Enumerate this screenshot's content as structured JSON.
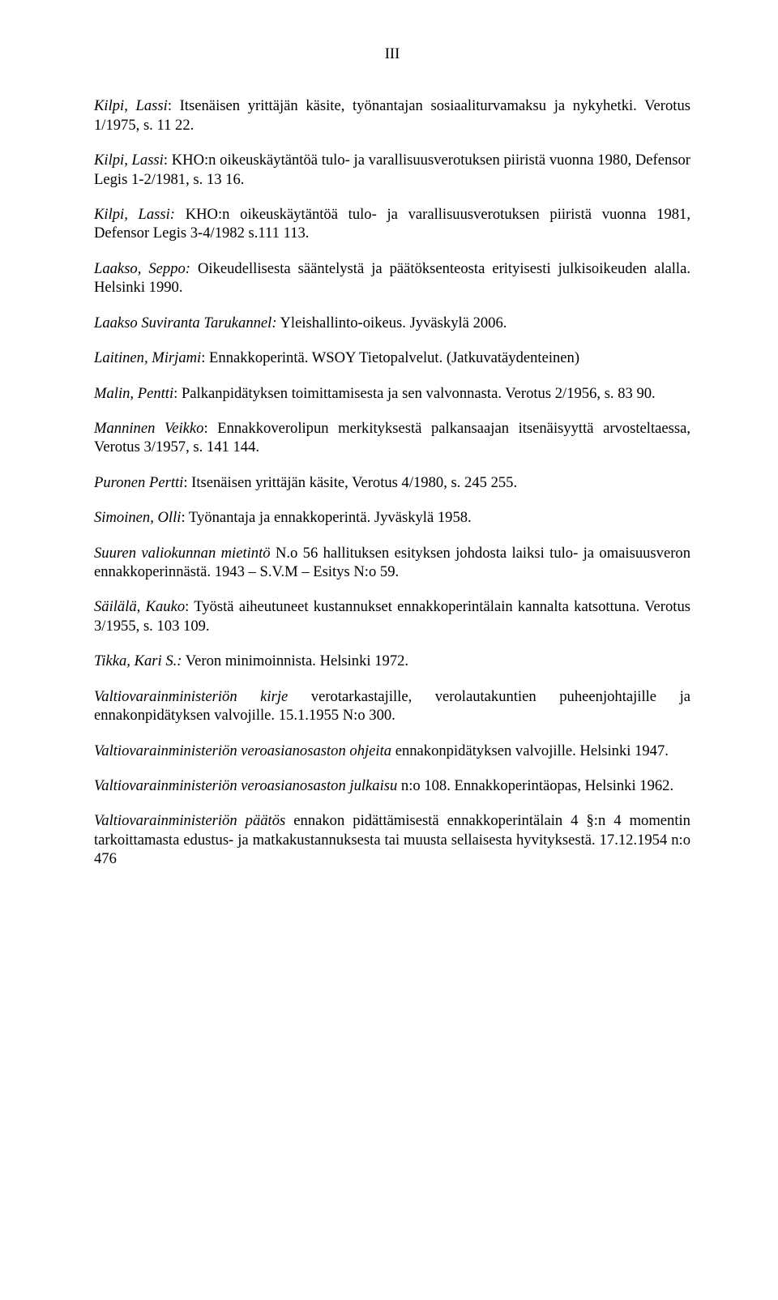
{
  "page_number": "III",
  "paragraphs": [
    [
      {
        "text": "Kilpi, Lassi",
        "italic": true
      },
      {
        "text": ": Itsenäisen yrittäjän käsite, työnantajan sosiaaliturvamaksu ja nykyhetki. Verotus 1/1975, s. 11 22.",
        "italic": false
      }
    ],
    [
      {
        "text": "Kilpi, Lassi",
        "italic": true
      },
      {
        "text": ":  KHO:n oikeuskäytäntöä tulo- ja varallisuusverotuksen piiristä vuonna 1980, Defensor Legis 1-2/1981, s. 13 16.",
        "italic": false
      }
    ],
    [
      {
        "text": "Kilpi, Lassi:",
        "italic": true
      },
      {
        "text": "  KHO:n oikeuskäytäntöä tulo- ja varallisuusverotuksen piiristä vuonna 1981, Defensor Legis 3-4/1982 s.111 113.",
        "italic": false
      }
    ],
    [
      {
        "text": "Laakso, Seppo:",
        "italic": true
      },
      {
        "text": " Oikeudellisesta sääntelystä ja päätöksenteosta erityisesti julkisoikeuden alalla. Helsinki 1990.",
        "italic": false
      }
    ],
    [
      {
        "text": "Laakso Suviranta Tarukannel:",
        "italic": true
      },
      {
        "text": " Yleishallinto-oikeus. Jyväskylä 2006.",
        "italic": false
      }
    ],
    [
      {
        "text": "Laitinen, Mirjami",
        "italic": true
      },
      {
        "text": ": Ennakkoperintä. WSOY Tietopalvelut. (Jatkuvatäydenteinen)",
        "italic": false
      }
    ],
    [
      {
        "text": "Malin, Pentti",
        "italic": true
      },
      {
        "text": ": Palkanpidätyksen toimittamisesta ja sen valvonnasta. Verotus 2/1956, s. 83 90.",
        "italic": false
      }
    ],
    [
      {
        "text": "Manninen Veikko",
        "italic": true
      },
      {
        "text": ": Ennakkoverolipun merkityksestä palkansaajan itsenäisyyttä arvosteltaessa, Verotus 3/1957, s. 141 144.",
        "italic": false
      }
    ],
    [
      {
        "text": "Puronen Pertti",
        "italic": true
      },
      {
        "text": ": Itsenäisen yrittäjän käsite, Verotus 4/1980, s. 245 255.",
        "italic": false
      }
    ],
    [
      {
        "text": "Simoinen, Olli",
        "italic": true
      },
      {
        "text": ": Työnantaja ja ennakkoperintä. Jyväskylä 1958.",
        "italic": false
      }
    ],
    [
      {
        "text": "Suuren valiokunnan mietintö",
        "italic": true
      },
      {
        "text": " N.o 56 hallituksen esityksen johdosta laiksi tulo- ja omaisuusveron ennakkoperinnästä. 1943 – S.V.M – Esitys N:o 59.",
        "italic": false
      }
    ],
    [
      {
        "text": "Säilälä, Kauko",
        "italic": true
      },
      {
        "text": ": Työstä aiheutuneet kustannukset ennakkoperintälain kannalta katsottuna. Verotus 3/1955, s. 103 109.",
        "italic": false
      }
    ],
    [
      {
        "text": "Tikka, Kari S.:",
        "italic": true
      },
      {
        "text": " Veron minimoinnista. Helsinki 1972.",
        "italic": false
      }
    ],
    [
      {
        "text": "Valtiovarainministeriön kirje",
        "italic": true
      },
      {
        "text": " verotarkastajille, verolautakuntien puheenjohtajille ja ennakonpidätyksen valvojille. 15.1.1955 N:o 300.",
        "italic": false
      }
    ],
    [
      {
        "text": "Valtiovarainministeriön veroasianosaston ohjeita",
        "italic": true
      },
      {
        "text": " ennakonpidätyksen valvojille. Helsinki 1947.",
        "italic": false
      }
    ],
    [
      {
        "text": "Valtiovarainministeriön veroasianosaston julkaisu",
        "italic": true
      },
      {
        "text": " n:o 108. Ennakkoperintäopas, Helsinki 1962.",
        "italic": false
      }
    ],
    [
      {
        "text": "Valtiovarainministeriön päätös",
        "italic": true
      },
      {
        "text": " ennakon pidättämisestä ennakkoperintälain 4 §:n 4 momentin tarkoittamasta edustus- ja matkakustannuksesta tai muusta sellaisesta hyvityksestä. 17.12.1954 n:o 476",
        "italic": false
      }
    ]
  ]
}
